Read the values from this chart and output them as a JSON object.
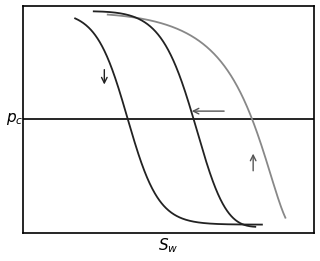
{
  "background_color": "#ffffff",
  "box_color": "#000000",
  "line_color_drainage": "#222222",
  "line_color_imbibition": "#888888",
  "xlim": [
    0.0,
    1.0
  ],
  "ylim": [
    -1.0,
    1.0
  ],
  "figsize": [
    3.2,
    2.61
  ],
  "dpi": 100,
  "xlabel": "S_w",
  "ylabel": "p_c"
}
